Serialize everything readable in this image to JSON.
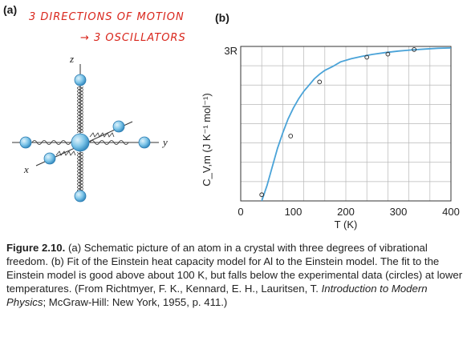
{
  "panel_a_label": "(a)",
  "panel_b_label": "(b)",
  "annotation_line1": "3 DIRECTIONS OF MOTION",
  "annotation_line2": "→ 3 OSCILLATORS",
  "atom_diagram": {
    "axis_z": "z",
    "axis_y": "y",
    "axis_x": "x"
  },
  "chart_data": {
    "type": "line",
    "title": "",
    "xlabel": "T (K)",
    "ylabel": "C_V,m (J K⁻¹ mol⁻¹)",
    "ymax_label": "3R",
    "xlim": [
      0,
      400
    ],
    "x_ticks": [
      0,
      100,
      200,
      300,
      400
    ],
    "grid": true,
    "curve_color": "#4aa3d8",
    "series": [
      {
        "x": [
          40,
          50,
          60,
          70,
          80,
          90,
          100,
          110,
          120,
          130,
          140,
          150,
          160,
          175,
          190,
          210,
          230,
          250,
          275,
          300,
          325,
          350,
          375,
          400
        ],
        "y": [
          0,
          0.1,
          0.22,
          0.34,
          0.44,
          0.53,
          0.6,
          0.66,
          0.71,
          0.75,
          0.79,
          0.82,
          0.845,
          0.87,
          0.9,
          0.92,
          0.935,
          0.948,
          0.96,
          0.97,
          0.977,
          0.983,
          0.988,
          0.99
        ]
      }
    ],
    "data_points": [
      {
        "x": 40,
        "y": 0.04
      },
      {
        "x": 95,
        "y": 0.42
      },
      {
        "x": 150,
        "y": 0.77
      },
      {
        "x": 240,
        "y": 0.93
      },
      {
        "x": 280,
        "y": 0.95
      },
      {
        "x": 330,
        "y": 0.98
      }
    ]
  },
  "caption": {
    "figure_label": "Figure 2.10.",
    "text_part1": "(a) Schematic picture of an atom in a crystal with three degrees of vibrational freedom. (b) Fit of the Einstein heat capacity model for Al to the Einstein model. The fit to the Einstein model is good above about 100 K, but falls below the experimental data (circles) at lower temperatures. (From Richtmyer, F. K., Kennard, E. H., Lauritsen, T.",
    "book_title": "Introduction to Modern Physics",
    "text_part2": "; McGraw-Hill: New York, 1955, p. 411.)"
  }
}
